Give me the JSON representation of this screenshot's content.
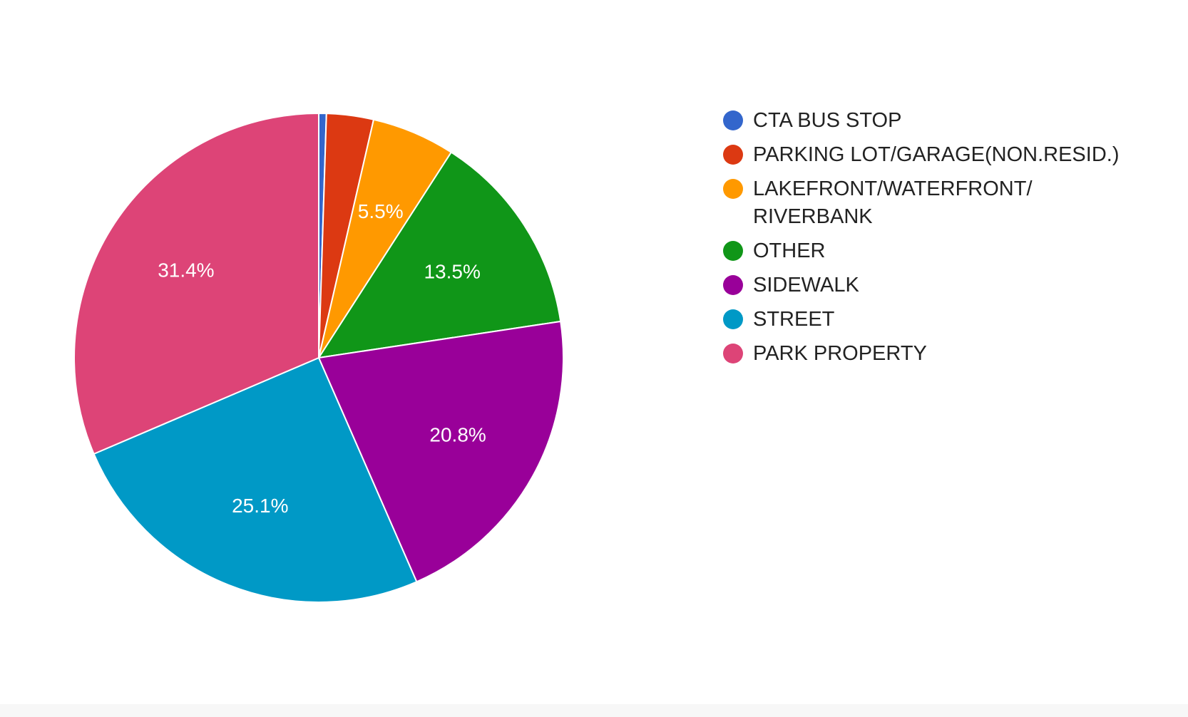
{
  "chart_data": {
    "type": "pie",
    "categories": [
      "CTA BUS STOP",
      "PARKING LOT/GARAGE(NON.RESID.)",
      "LAKEFRONT/WATERFRONT/ RIVERBANK",
      "OTHER",
      "SIDEWALK",
      "STREET",
      "PARK PROPERTY"
    ],
    "values": [
      0.5,
      3.1,
      5.5,
      13.5,
      20.8,
      25.1,
      31.4
    ],
    "labels": [
      "",
      "",
      "5.5%",
      "13.5%",
      "20.8%",
      "25.1%",
      "31.4%"
    ],
    "colors": [
      "#3366cc",
      "#dc3912",
      "#ff9900",
      "#109618",
      "#990099",
      "#0099c6",
      "#dd4477"
    ],
    "legend_position": "right"
  }
}
